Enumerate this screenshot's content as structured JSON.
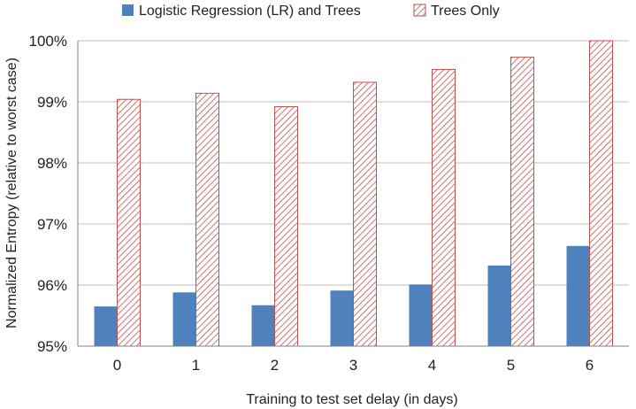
{
  "chart_data": {
    "type": "bar",
    "title": "",
    "xlabel": "Training to test set delay (in days)",
    "ylabel": "Normalized Entropy (relative to worst case)",
    "categories": [
      "0",
      "1",
      "2",
      "3",
      "4",
      "5",
      "6"
    ],
    "ylim": [
      95,
      100
    ],
    "yticks": [
      95,
      96,
      97,
      98,
      99,
      100
    ],
    "ytick_labels": [
      "95%",
      "96%",
      "97%",
      "98%",
      "99%",
      "100%"
    ],
    "grid": "horizontal",
    "legend_position": "top",
    "series": [
      {
        "name": "Logistic Regression (LR) and Trees",
        "color": "#4f81bd",
        "fill": "solid",
        "values": [
          95.65,
          95.88,
          95.67,
          95.91,
          96.01,
          96.32,
          96.64
        ]
      },
      {
        "name": "Trees Only",
        "color": "#d9534f",
        "fill": "diagonal-hatch",
        "values": [
          99.04,
          99.14,
          98.92,
          99.32,
          99.53,
          99.73,
          100.0
        ]
      }
    ]
  }
}
